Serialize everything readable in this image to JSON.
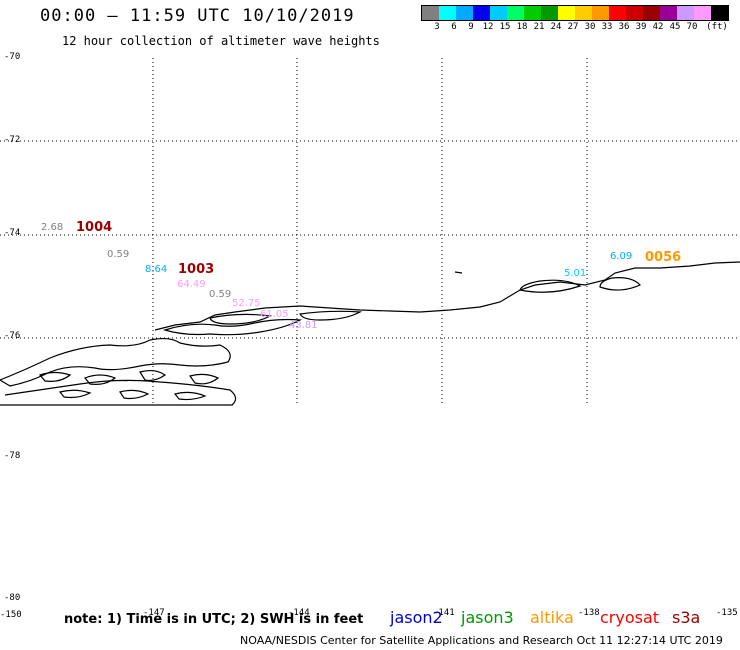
{
  "header": {
    "title": "00:00 – 11:59 UTC 10/10/2019",
    "subtitle": "12 hour collection of altimeter wave heights"
  },
  "legend": {
    "colors": [
      "#808080",
      "#00ffff",
      "#00aaff",
      "#0000ee",
      "#00ccff",
      "#00ff66",
      "#00cc00",
      "#009900",
      "#ffff00",
      "#ffcc00",
      "#ff9900",
      "#ff0000",
      "#cc0000",
      "#990000",
      "#990099",
      "#cc99ff",
      "#ff99ff",
      "#000000"
    ],
    "labels": [
      "3",
      "6",
      "9",
      "12",
      "15",
      "18",
      "21",
      "24",
      "27",
      "30",
      "33",
      "36",
      "39",
      "42",
      "45",
      "70",
      "(ft)"
    ]
  },
  "axes": {
    "y_ticks": [
      "-70",
      "-72",
      "-74",
      "-76",
      "-78",
      "-78",
      "-80"
    ],
    "x_ticks": [
      "-150",
      "-147",
      "-144",
      "-141",
      "-138",
      "-135"
    ]
  },
  "observations": [
    {
      "text": "2.68",
      "color": "#808080"
    },
    {
      "text": "1004",
      "color": "#990000",
      "kind": "id"
    },
    {
      "text": "0.59",
      "color": "#808080"
    },
    {
      "text": "8.64",
      "color": "#00aaff"
    },
    {
      "text": "1003",
      "color": "#990000",
      "kind": "id"
    },
    {
      "text": "64.49",
      "color": "#ff99ff"
    },
    {
      "text": "0.59",
      "color": "#808080"
    },
    {
      "text": "52.75",
      "color": "#ff99ff"
    },
    {
      "text": "61.05",
      "color": "#ff99ff"
    },
    {
      "text": "43.81",
      "color": "#cc99ff"
    },
    {
      "text": "5.01",
      "color": "#00ccff"
    },
    {
      "text": "6.09",
      "color": "#00aaff"
    },
    {
      "text": "0056",
      "color": "#ff9900",
      "kind": "id"
    }
  ],
  "footer": {
    "note": "note: 1) Time is in UTC; 2) SWH is in feet",
    "satellites": [
      {
        "name": "jason2",
        "color": "#0000cc"
      },
      {
        "name": "jason3",
        "color": "#009900"
      },
      {
        "name": "altika",
        "color": "#ff9900"
      },
      {
        "name": "cryosat",
        "color": "#ff0000"
      },
      {
        "name": "s3a",
        "color": "#990000"
      }
    ],
    "credit": "NOAA/NESDIS Center for Satellite Applications and Research    Oct 11 12:27:14 UTC 2019"
  }
}
